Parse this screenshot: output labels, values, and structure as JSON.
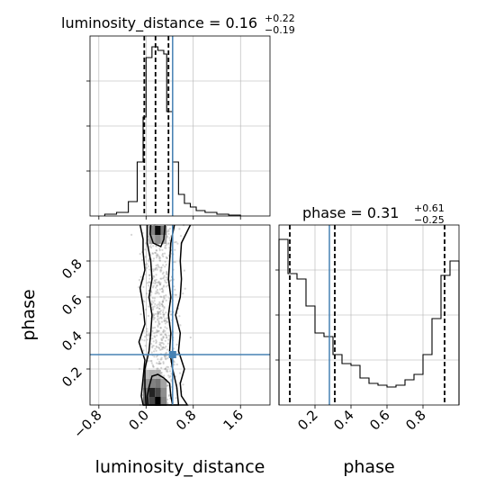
{
  "chart_data": [
    {
      "type": "histogram",
      "panel": "top-left",
      "title": {
        "main": "luminosity_distance = 0.16",
        "upper": "+0.22",
        "lower": "−0.19"
      },
      "xlim": [
        -0.95,
        2.1
      ],
      "ylim": [
        0,
        1.0
      ],
      "grid": true,
      "bin_edges": [
        -0.7,
        -0.5,
        -0.3,
        -0.15,
        -0.05,
        0.0,
        0.1,
        0.2,
        0.3,
        0.35,
        0.45,
        0.55,
        0.65,
        0.75,
        0.85,
        1.0,
        1.2,
        1.4,
        1.6
      ],
      "counts": [
        0.01,
        0.02,
        0.08,
        0.3,
        0.55,
        0.88,
        0.94,
        0.92,
        0.9,
        0.58,
        0.3,
        0.12,
        0.07,
        0.05,
        0.03,
        0.02,
        0.01,
        0.005
      ],
      "quantiles": [
        -0.03,
        0.16,
        0.38
      ],
      "truth": 0.45
    },
    {
      "type": "scatter",
      "panel": "bottom-left",
      "xlabel": "luminosity_distance",
      "ylabel": "phase",
      "xlim": [
        -0.95,
        2.1
      ],
      "ylim": [
        0.0,
        1.0
      ],
      "x_ticks": [
        "−0.8",
        "0.0",
        "0.8",
        "1.6"
      ],
      "x_tick_values": [
        -0.8,
        0.0,
        0.8,
        1.6
      ],
      "y_ticks": [
        "0.2",
        "0.4",
        "0.6",
        "0.8"
      ],
      "y_tick_values": [
        0.2,
        0.4,
        0.6,
        0.8
      ],
      "grid": true,
      "truth": [
        0.45,
        0.28
      ],
      "density_cells": [
        {
          "x": 0.0,
          "y": 0.02,
          "v": 0.55
        },
        {
          "x": 0.1,
          "y": 0.02,
          "v": 0.7
        },
        {
          "x": 0.2,
          "y": 0.02,
          "v": 1.0
        },
        {
          "x": 0.3,
          "y": 0.02,
          "v": 0.45
        },
        {
          "x": 0.0,
          "y": 0.07,
          "v": 0.5
        },
        {
          "x": 0.1,
          "y": 0.07,
          "v": 0.85
        },
        {
          "x": 0.2,
          "y": 0.07,
          "v": 0.7
        },
        {
          "x": 0.3,
          "y": 0.07,
          "v": 0.4
        },
        {
          "x": 0.0,
          "y": 0.12,
          "v": 0.35
        },
        {
          "x": 0.1,
          "y": 0.12,
          "v": 0.45
        },
        {
          "x": 0.2,
          "y": 0.12,
          "v": 0.5
        },
        {
          "x": 0.3,
          "y": 0.12,
          "v": 0.3
        },
        {
          "x": 0.0,
          "y": 0.17,
          "v": 0.2
        },
        {
          "x": 0.1,
          "y": 0.17,
          "v": 0.25
        },
        {
          "x": 0.2,
          "y": 0.17,
          "v": 0.25
        },
        {
          "x": 0.1,
          "y": 0.97,
          "v": 0.45
        },
        {
          "x": 0.2,
          "y": 0.97,
          "v": 0.95
        },
        {
          "x": 0.3,
          "y": 0.97,
          "v": 0.5
        },
        {
          "x": 0.1,
          "y": 0.92,
          "v": 0.3
        },
        {
          "x": 0.2,
          "y": 0.92,
          "v": 0.4
        },
        {
          "x": 0.3,
          "y": 0.92,
          "v": 0.3
        }
      ],
      "contours": [
        {
          "name": "outer",
          "points": [
            [
              -0.1,
              1.0
            ],
            [
              -0.05,
              0.92
            ],
            [
              -0.05,
              0.85
            ],
            [
              -0.02,
              0.75
            ],
            [
              -0.1,
              0.65
            ],
            [
              -0.05,
              0.55
            ],
            [
              -0.02,
              0.45
            ],
            [
              -0.12,
              0.35
            ],
            [
              -0.02,
              0.25
            ],
            [
              -0.05,
              0.15
            ],
            [
              -0.08,
              0.05
            ],
            [
              -0.05,
              0.0
            ],
            [
              0.7,
              0.0
            ],
            [
              0.6,
              0.05
            ],
            [
              0.58,
              0.12
            ],
            [
              0.65,
              0.2
            ],
            [
              0.55,
              0.3
            ],
            [
              0.58,
              0.4
            ],
            [
              0.5,
              0.5
            ],
            [
              0.58,
              0.6
            ],
            [
              0.6,
              0.7
            ],
            [
              0.58,
              0.8
            ],
            [
              0.6,
              0.9
            ],
            [
              0.75,
              1.0
            ]
          ]
        },
        {
          "name": "inner-bottom",
          "points": [
            [
              0.03,
              0.0
            ],
            [
              0.02,
              0.05
            ],
            [
              0.05,
              0.1
            ],
            [
              0.1,
              0.16
            ],
            [
              0.2,
              0.17
            ],
            [
              0.3,
              0.15
            ],
            [
              0.4,
              0.12
            ],
            [
              0.42,
              0.05
            ],
            [
              0.45,
              0.0
            ]
          ]
        },
        {
          "name": "inner-top",
          "points": [
            [
              0.08,
              1.0
            ],
            [
              0.07,
              0.95
            ],
            [
              0.12,
              0.9
            ],
            [
              0.25,
              0.88
            ],
            [
              0.3,
              0.92
            ],
            [
              0.32,
              1.0
            ]
          ]
        },
        {
          "name": "middle",
          "points": [
            [
              0.02,
              1.0
            ],
            [
              0.02,
              0.9
            ],
            [
              0.08,
              0.8
            ],
            [
              0.1,
              0.7
            ],
            [
              0.05,
              0.6
            ],
            [
              0.1,
              0.5
            ],
            [
              0.08,
              0.4
            ],
            [
              0.05,
              0.3
            ],
            [
              -0.02,
              0.2
            ],
            [
              -0.02,
              0.1
            ],
            [
              0.0,
              0.0
            ],
            [
              0.55,
              0.0
            ],
            [
              0.52,
              0.1
            ],
            [
              0.45,
              0.2
            ],
            [
              0.4,
              0.3
            ],
            [
              0.42,
              0.4
            ],
            [
              0.38,
              0.5
            ],
            [
              0.42,
              0.6
            ],
            [
              0.38,
              0.7
            ],
            [
              0.4,
              0.8
            ],
            [
              0.42,
              0.9
            ],
            [
              0.48,
              1.0
            ]
          ]
        }
      ]
    },
    {
      "type": "histogram",
      "panel": "bottom-right",
      "title": {
        "main": "phase = 0.31",
        "upper": "+0.61",
        "lower": "−0.25"
      },
      "xlabel": "phase",
      "xlim": [
        0.0,
        1.0
      ],
      "ylim": [
        0,
        1.0
      ],
      "x_ticks": [
        "0.2",
        "0.4",
        "0.6",
        "0.8"
      ],
      "x_tick_values": [
        0.2,
        0.4,
        0.6,
        0.8
      ],
      "grid": true,
      "bin_edges": [
        0.0,
        0.05,
        0.1,
        0.15,
        0.2,
        0.25,
        0.3,
        0.35,
        0.4,
        0.45,
        0.5,
        0.55,
        0.6,
        0.65,
        0.7,
        0.75,
        0.8,
        0.85,
        0.9,
        0.95,
        1.0
      ],
      "counts": [
        0.92,
        0.73,
        0.7,
        0.55,
        0.4,
        0.38,
        0.28,
        0.23,
        0.22,
        0.15,
        0.12,
        0.11,
        0.1,
        0.11,
        0.14,
        0.17,
        0.28,
        0.48,
        0.72,
        0.8
      ],
      "quantiles": [
        0.06,
        0.31,
        0.92
      ],
      "truth": 0.28
    }
  ]
}
